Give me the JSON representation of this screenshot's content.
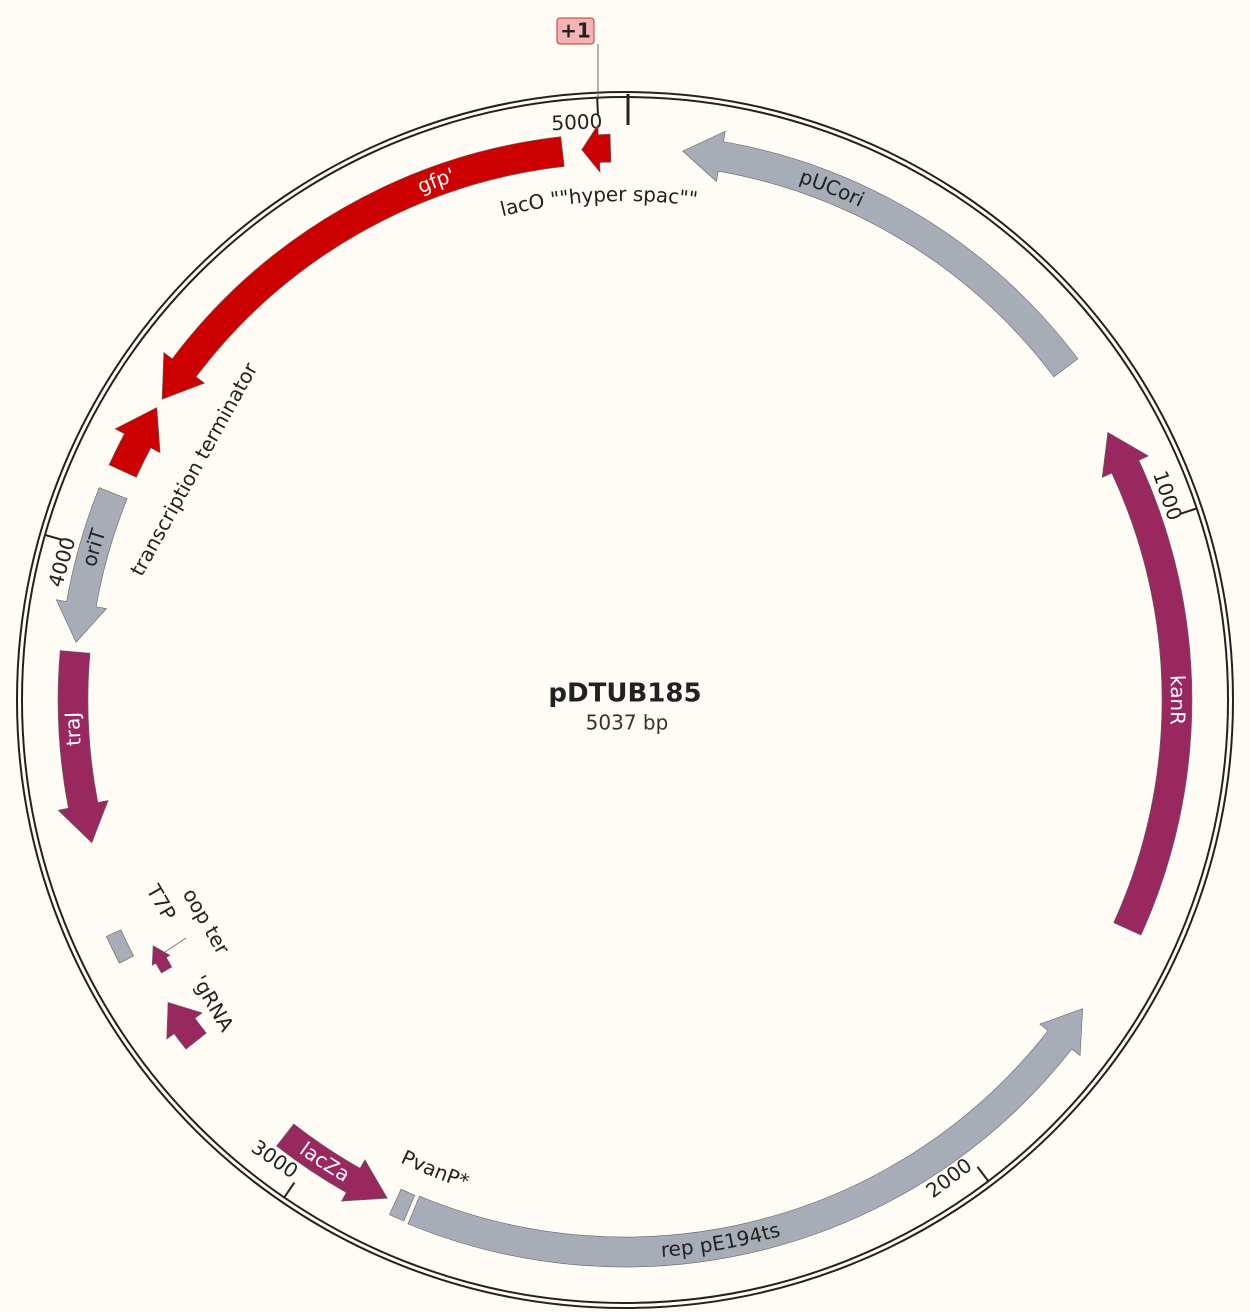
{
  "map": {
    "origin_label": "+1",
    "title": "pDTUB185",
    "length": "5037 bp",
    "ticks": [
      1000,
      2000,
      3000,
      4000,
      5000
    ],
    "features": [
      {
        "label": "lacO \"\"hyper spac\"\"",
        "color": "#cc0000"
      },
      {
        "label": "gfp'",
        "color": "#cc0000"
      },
      {
        "label": "transcription terminator",
        "color": "#cc0000"
      },
      {
        "label": "oriT",
        "color": "#a7adb7"
      },
      {
        "label": "traJ",
        "color": "#98285e"
      },
      {
        "label": "oop ter",
        "color": "#a7adb7"
      },
      {
        "label": "T7P",
        "color": "#98285e"
      },
      {
        "label": "'gRNA",
        "color": "#98285e"
      },
      {
        "label": "lacZa",
        "color": "#98285e"
      },
      {
        "label": "PvanP*",
        "color": "#a7adb7"
      },
      {
        "label": "rep pE194ts",
        "color": "#a7adb7"
      },
      {
        "label": "kanR",
        "color": "#98285e"
      },
      {
        "label": "pUCori",
        "color": "#a7adb7"
      }
    ]
  }
}
